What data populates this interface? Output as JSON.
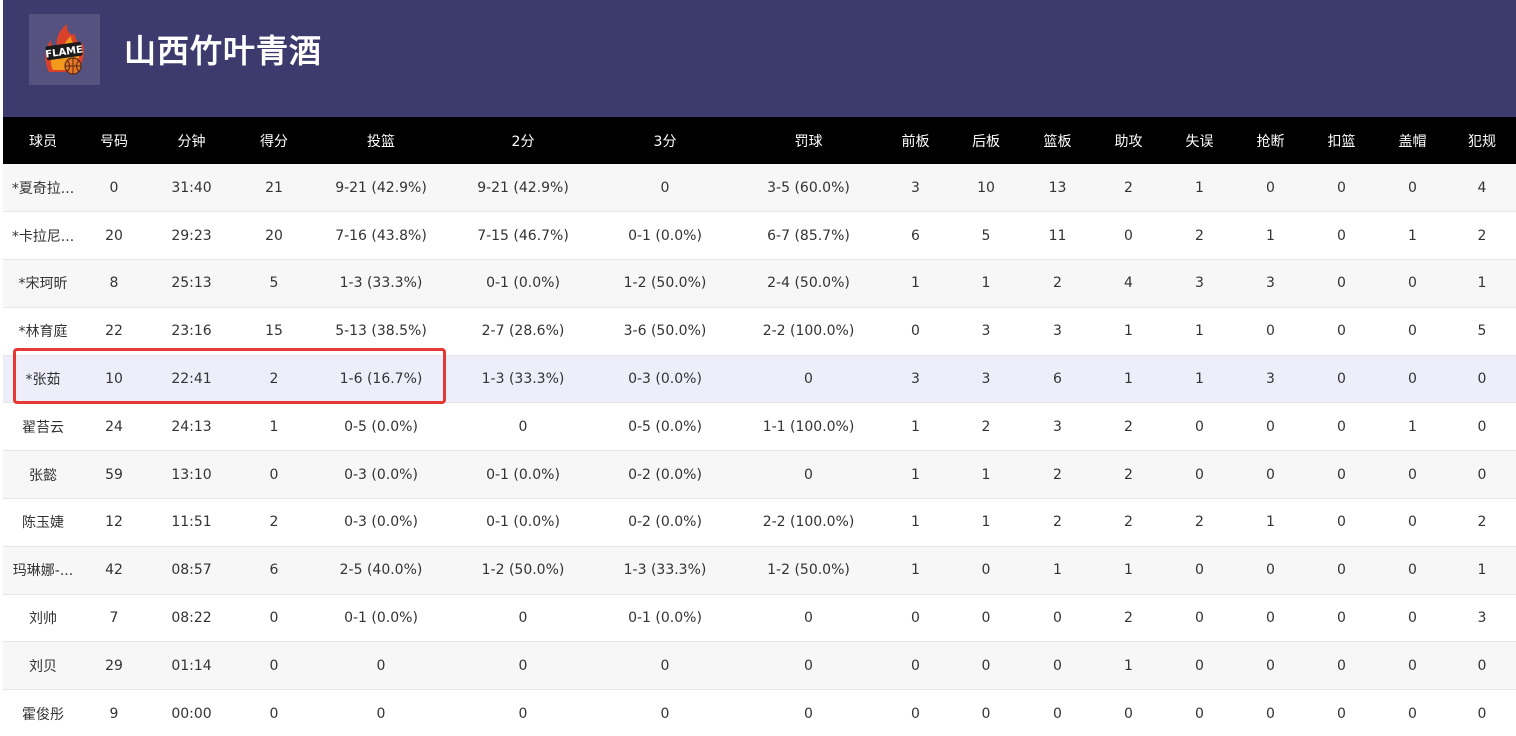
{
  "team": {
    "name": "山西竹叶青酒",
    "logo_icon": "flame-basketball-logo-icon",
    "header_color": "#3d3b6e"
  },
  "columns": [
    "球员",
    "号码",
    "分钟",
    "得分",
    "投篮",
    "2分",
    "3分",
    "罚球",
    "前板",
    "后板",
    "篮板",
    "助攻",
    "失误",
    "抢断",
    "扣篮",
    "盖帽",
    "犯规"
  ],
  "players": [
    [
      "*夏奇拉...",
      "0",
      "31:40",
      "21",
      "9-21 (42.9%)",
      "9-21 (42.9%)",
      "0",
      "3-5 (60.0%)",
      "3",
      "10",
      "13",
      "2",
      "1",
      "0",
      "0",
      "0",
      "4"
    ],
    [
      "*卡拉尼...",
      "20",
      "29:23",
      "20",
      "7-16 (43.8%)",
      "7-15 (46.7%)",
      "0-1 (0.0%)",
      "6-7 (85.7%)",
      "6",
      "5",
      "11",
      "0",
      "2",
      "1",
      "0",
      "1",
      "2"
    ],
    [
      "*宋珂昕",
      "8",
      "25:13",
      "5",
      "1-3 (33.3%)",
      "0-1 (0.0%)",
      "1-2 (50.0%)",
      "2-4 (50.0%)",
      "1",
      "1",
      "2",
      "4",
      "3",
      "3",
      "0",
      "0",
      "1"
    ],
    [
      "*林育庭",
      "22",
      "23:16",
      "15",
      "5-13 (38.5%)",
      "2-7 (28.6%)",
      "3-6 (50.0%)",
      "2-2 (100.0%)",
      "0",
      "3",
      "3",
      "1",
      "1",
      "0",
      "0",
      "0",
      "5"
    ],
    [
      "*张茹",
      "10",
      "22:41",
      "2",
      "1-6 (16.7%)",
      "1-3 (33.3%)",
      "0-3 (0.0%)",
      "0",
      "3",
      "3",
      "6",
      "1",
      "1",
      "3",
      "0",
      "0",
      "0"
    ],
    [
      "翟苔云",
      "24",
      "24:13",
      "1",
      "0-5 (0.0%)",
      "0",
      "0-5 (0.0%)",
      "1-1 (100.0%)",
      "1",
      "2",
      "3",
      "2",
      "0",
      "0",
      "0",
      "1",
      "0"
    ],
    [
      "张懿",
      "59",
      "13:10",
      "0",
      "0-3 (0.0%)",
      "0-1 (0.0%)",
      "0-2 (0.0%)",
      "0",
      "1",
      "1",
      "2",
      "2",
      "0",
      "0",
      "0",
      "0",
      "0"
    ],
    [
      "陈玉婕",
      "12",
      "11:51",
      "2",
      "0-3 (0.0%)",
      "0-1 (0.0%)",
      "0-2 (0.0%)",
      "2-2 (100.0%)",
      "1",
      "1",
      "2",
      "2",
      "2",
      "1",
      "0",
      "0",
      "2"
    ],
    [
      "玛琳娜-...",
      "42",
      "08:57",
      "6",
      "2-5 (40.0%)",
      "1-2 (50.0%)",
      "1-3 (33.3%)",
      "1-2 (50.0%)",
      "1",
      "0",
      "1",
      "1",
      "0",
      "0",
      "0",
      "0",
      "1"
    ],
    [
      "刘帅",
      "7",
      "08:22",
      "0",
      "0-1 (0.0%)",
      "0",
      "0-1 (0.0%)",
      "0",
      "0",
      "0",
      "0",
      "2",
      "0",
      "0",
      "0",
      "0",
      "3"
    ],
    [
      "刘贝",
      "29",
      "01:14",
      "0",
      "0",
      "0",
      "0",
      "0",
      "0",
      "0",
      "0",
      "1",
      "0",
      "0",
      "0",
      "0",
      "0"
    ],
    [
      "霍俊彤",
      "9",
      "00:00",
      "0",
      "0",
      "0",
      "0",
      "0",
      "0",
      "0",
      "0",
      "0",
      "0",
      "0",
      "0",
      "0",
      "0"
    ]
  ],
  "highlight": {
    "row_index": 4,
    "box_color": "#e53935"
  }
}
